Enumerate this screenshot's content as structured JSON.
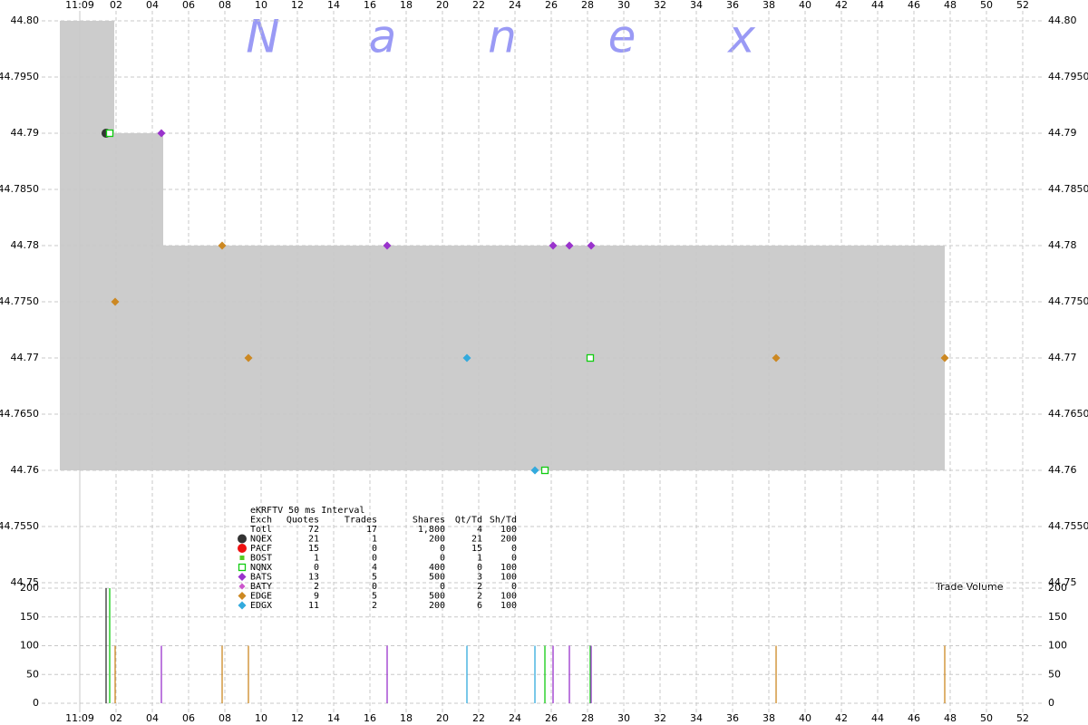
{
  "chart_data": {
    "type": "scatter",
    "watermark": [
      "N",
      "a",
      "n",
      "e",
      "x"
    ],
    "xlim": [
      -1.1,
      53.1
    ],
    "xticks": [
      {
        "value": 0,
        "label": "11:09"
      },
      {
        "value": 2,
        "label": "02"
      },
      {
        "value": 4,
        "label": "04"
      },
      {
        "value": 6,
        "label": "06"
      },
      {
        "value": 8,
        "label": "08"
      },
      {
        "value": 10,
        "label": "10"
      },
      {
        "value": 12,
        "label": "12"
      },
      {
        "value": 14,
        "label": "14"
      },
      {
        "value": 16,
        "label": "16"
      },
      {
        "value": 18,
        "label": "18"
      },
      {
        "value": 20,
        "label": "20"
      },
      {
        "value": 22,
        "label": "22"
      },
      {
        "value": 24,
        "label": "24"
      },
      {
        "value": 26,
        "label": "26"
      },
      {
        "value": 28,
        "label": "28"
      },
      {
        "value": 30,
        "label": "30"
      },
      {
        "value": 32,
        "label": "32"
      },
      {
        "value": 34,
        "label": "34"
      },
      {
        "value": 36,
        "label": "36"
      },
      {
        "value": 38,
        "label": "38"
      },
      {
        "value": 40,
        "label": "40"
      },
      {
        "value": 42,
        "label": "42"
      },
      {
        "value": 44,
        "label": "44"
      },
      {
        "value": 46,
        "label": "46"
      },
      {
        "value": 48,
        "label": "48"
      },
      {
        "value": 50,
        "label": "50"
      },
      {
        "value": 52,
        "label": "52"
      }
    ],
    "ylim": [
      44.75,
      44.8
    ],
    "yticks": [
      {
        "value": 44.8,
        "label": "44.80"
      },
      {
        "value": 44.795,
        "label": "44.7950"
      },
      44.79,
      {
        "value": 44.785,
        "label": "44.7850"
      },
      44.78,
      {
        "value": 44.775,
        "label": "44.7750"
      },
      44.77,
      {
        "value": 44.765,
        "label": "44.7650"
      },
      44.76,
      {
        "value": 44.755,
        "label": "44.7550"
      },
      44.75
    ],
    "y2label": "Trade Volume",
    "y2lim": [
      0,
      200
    ],
    "y2ticks": [
      0,
      50,
      100,
      150,
      200
    ],
    "grid": true,
    "spread": {
      "color": "#cccccc",
      "x": [
        -1.1,
        1.9,
        4.6
      ],
      "x_end": [
        1.9,
        4.6,
        47.7
      ],
      "high": [
        44.8,
        44.79,
        44.78
      ],
      "low": [
        44.76,
        44.76,
        44.76
      ]
    },
    "stats": {
      "title": "eKRFTV 50 ms Interval",
      "columns": [
        "Exch",
        "Quotes",
        "Trades",
        "Shares",
        "Qt/Td",
        "Sh/Td"
      ],
      "total": [
        "Totl",
        72,
        17,
        "1,800",
        4,
        100
      ]
    },
    "series": [
      {
        "name": "NQEX",
        "color": "#333333",
        "marker": "circle",
        "stats": [
          21,
          1,
          200,
          21,
          200
        ],
        "x": [
          1.45
        ],
        "y": [
          44.79
        ],
        "volume": [
          200
        ]
      },
      {
        "name": "PACF",
        "color": "#ee1111",
        "marker": "circle",
        "stats": [
          15,
          0,
          0,
          15,
          0
        ],
        "x": [],
        "y": [],
        "volume": []
      },
      {
        "name": "BOST",
        "color": "#55cc22",
        "marker": "small-square",
        "stats": [
          1,
          0,
          0,
          1,
          0
        ],
        "x": [],
        "y": [],
        "volume": []
      },
      {
        "name": "NQNX",
        "color": "#11cc11",
        "marker": "square",
        "stats": [
          0,
          4,
          400,
          0,
          100
        ],
        "x": [
          1.65,
          25.65,
          28.15
        ],
        "y": [
          44.79,
          44.76,
          44.77
        ],
        "volume": [
          200,
          100,
          100
        ]
      },
      {
        "name": "BATS",
        "color": "#9933cc",
        "marker": "diamond",
        "stats": [
          13,
          5,
          500,
          3,
          100
        ],
        "x": [
          4.5,
          16.95,
          26.1,
          27.0,
          28.2
        ],
        "y": [
          44.79,
          44.78,
          44.78,
          44.78,
          44.78
        ],
        "volume": [
          100,
          100,
          100,
          100,
          100
        ]
      },
      {
        "name": "BATY",
        "color": "#cc55cc",
        "marker": "small-diamond",
        "stats": [
          2,
          0,
          0,
          2,
          0
        ],
        "x": [],
        "y": [],
        "volume": []
      },
      {
        "name": "EDGE",
        "color": "#cc8822",
        "marker": "diamond",
        "stats": [
          9,
          5,
          500,
          2,
          100
        ],
        "x": [
          1.95,
          7.85,
          9.3,
          38.4,
          47.7
        ],
        "y": [
          44.775,
          44.78,
          44.77,
          44.77,
          44.77
        ],
        "volume": [
          100,
          100,
          100,
          100,
          100
        ]
      },
      {
        "name": "EDGX",
        "color": "#33aadd",
        "marker": "diamond",
        "stats": [
          11,
          2,
          200,
          6,
          100
        ],
        "x": [
          21.35,
          25.1
        ],
        "y": [
          44.77,
          44.76
        ],
        "volume": [
          100,
          100
        ]
      }
    ]
  }
}
